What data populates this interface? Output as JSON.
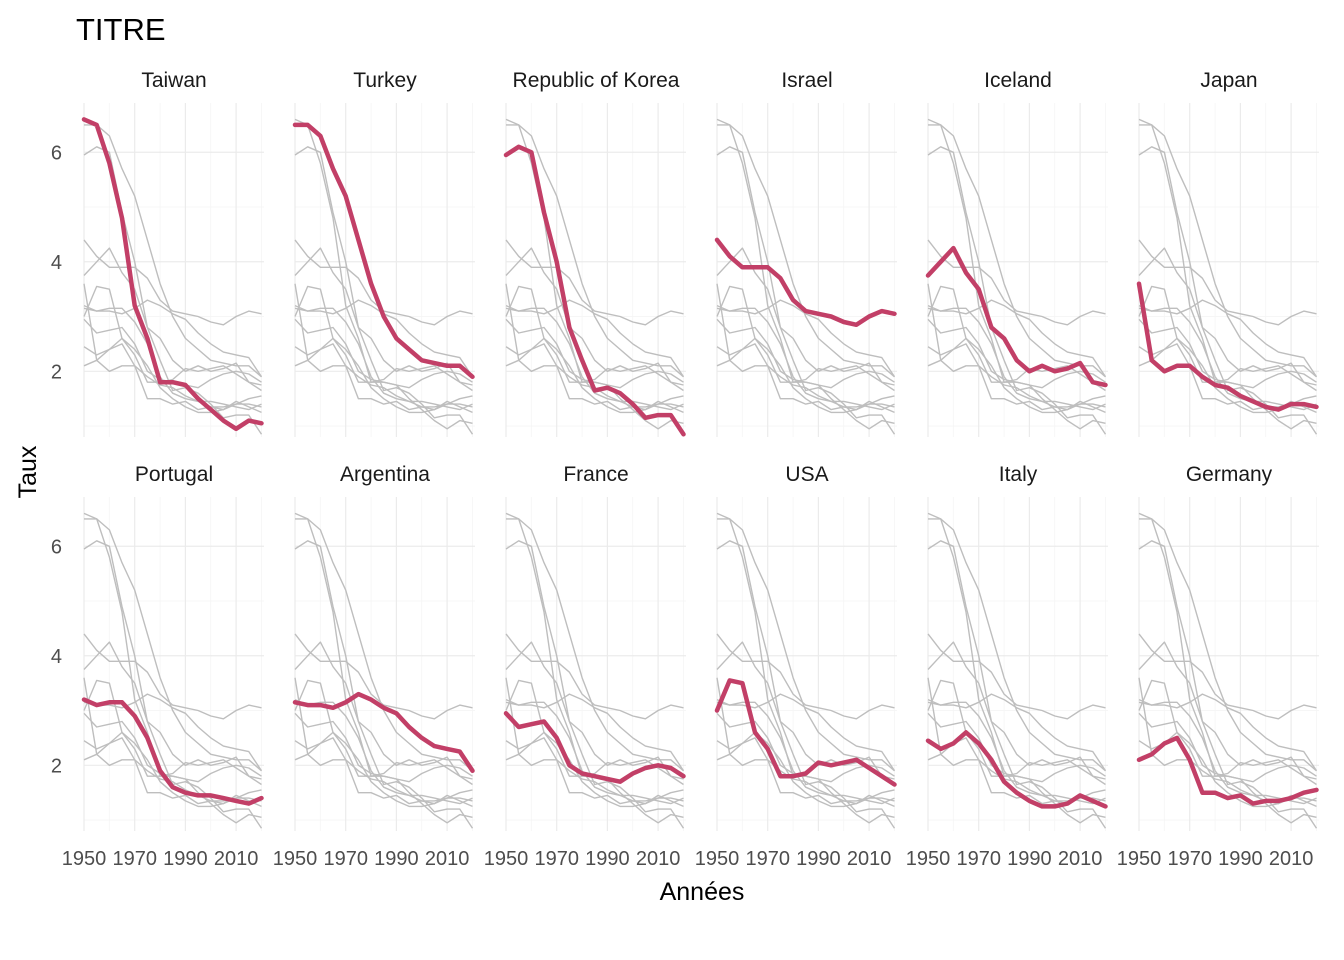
{
  "chart_data": {
    "type": "line",
    "title": "TITRE",
    "xlabel": "Années",
    "ylabel": "Taux",
    "x_ticks": [
      1950,
      1970,
      1990,
      2010
    ],
    "x_tick_labels": [
      "1950",
      "1970",
      "1990",
      "2010"
    ],
    "y_ticks": [
      2,
      4,
      6
    ],
    "y_tick_labels": [
      "2",
      "4",
      "6"
    ],
    "xlim": [
      1950,
      2021
    ],
    "ylim": [
      0.8,
      6.9
    ],
    "facet_layout": {
      "rows": 2,
      "cols": 6
    },
    "grid": true,
    "legend": "none",
    "colors": {
      "highlight": "#c23f67",
      "background_series": "#bebebe",
      "grid": "#ebebeb"
    },
    "x": [
      1950,
      1955,
      1960,
      1965,
      1970,
      1975,
      1980,
      1985,
      1990,
      1995,
      2000,
      2005,
      2010,
      2015,
      2020
    ],
    "series": [
      {
        "name": "Taiwan",
        "values": [
          6.6,
          6.5,
          5.8,
          4.8,
          3.2,
          2.6,
          1.8,
          1.8,
          1.75,
          1.5,
          1.3,
          1.1,
          0.95,
          1.1,
          1.05
        ]
      },
      {
        "name": "Turkey",
        "values": [
          6.5,
          6.5,
          6.3,
          5.7,
          5.2,
          4.4,
          3.6,
          3.0,
          2.6,
          2.4,
          2.2,
          2.15,
          2.1,
          2.1,
          1.9
        ]
      },
      {
        "name": "Republic of Korea",
        "values": [
          5.95,
          6.1,
          6.0,
          4.9,
          4.0,
          2.8,
          2.2,
          1.65,
          1.7,
          1.6,
          1.4,
          1.15,
          1.2,
          1.2,
          0.85
        ]
      },
      {
        "name": "Israel",
        "values": [
          4.4,
          4.1,
          3.9,
          3.9,
          3.9,
          3.7,
          3.3,
          3.1,
          3.05,
          3.0,
          2.9,
          2.85,
          3.0,
          3.1,
          3.05
        ]
      },
      {
        "name": "Iceland",
        "values": [
          3.75,
          4.0,
          4.25,
          3.8,
          3.5,
          2.8,
          2.6,
          2.2,
          2.0,
          2.1,
          2.0,
          2.05,
          2.15,
          1.8,
          1.75
        ]
      },
      {
        "name": "Japan",
        "values": [
          3.6,
          2.2,
          2.0,
          2.1,
          2.1,
          1.9,
          1.75,
          1.7,
          1.55,
          1.45,
          1.35,
          1.3,
          1.4,
          1.4,
          1.35
        ]
      },
      {
        "name": "Portugal",
        "values": [
          3.2,
          3.1,
          3.15,
          3.15,
          2.9,
          2.5,
          1.9,
          1.6,
          1.5,
          1.45,
          1.45,
          1.4,
          1.35,
          1.3,
          1.4
        ]
      },
      {
        "name": "Argentina",
        "values": [
          3.15,
          3.1,
          3.1,
          3.05,
          3.15,
          3.3,
          3.2,
          3.05,
          2.95,
          2.7,
          2.5,
          2.35,
          2.3,
          2.25,
          1.9
        ]
      },
      {
        "name": "France",
        "values": [
          2.95,
          2.7,
          2.75,
          2.8,
          2.5,
          2.0,
          1.85,
          1.8,
          1.75,
          1.7,
          1.85,
          1.95,
          2.0,
          1.95,
          1.8
        ]
      },
      {
        "name": "USA",
        "values": [
          3.0,
          3.55,
          3.5,
          2.6,
          2.3,
          1.8,
          1.8,
          1.85,
          2.05,
          2.0,
          2.05,
          2.1,
          1.95,
          1.8,
          1.65
        ]
      },
      {
        "name": "Italy",
        "values": [
          2.45,
          2.3,
          2.4,
          2.6,
          2.4,
          2.1,
          1.7,
          1.5,
          1.35,
          1.25,
          1.25,
          1.3,
          1.45,
          1.35,
          1.25
        ]
      },
      {
        "name": "Germany",
        "values": [
          2.1,
          2.2,
          2.4,
          2.5,
          2.1,
          1.5,
          1.5,
          1.4,
          1.45,
          1.3,
          1.35,
          1.35,
          1.4,
          1.5,
          1.55
        ]
      }
    ]
  }
}
